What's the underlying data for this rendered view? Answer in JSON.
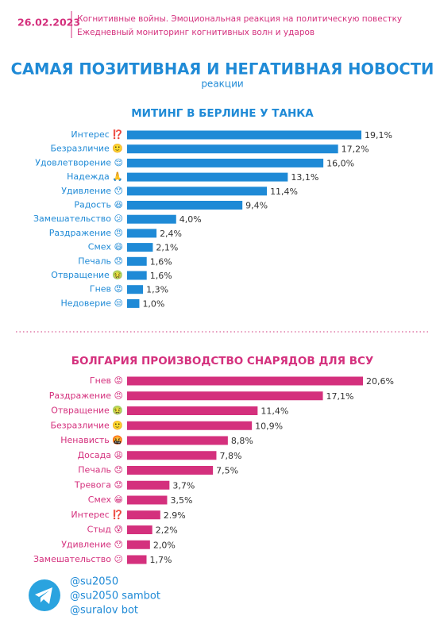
{
  "header": {
    "date": "26.02.2023",
    "lines": [
      "Когнитивные войны. Эмоциональная реакция на политическую повестку",
      "Ежедневный мониторинг когнитивных волн и ударов"
    ]
  },
  "title": "САМАЯ ПОЗИТИВНАЯ И НЕГАТИВНАЯ НОВОСТИ",
  "subtitle": "реакции",
  "chart_data": [
    {
      "type": "barh",
      "title": "МИТИНГ В БЕРЛИНЕ У  ТАНКА",
      "color": "#1f8ad6",
      "categories": [
        "Интерес ⁉️",
        "Безразличие 🙂",
        "Удовлетворение 😌",
        "Надежда 🙏",
        "Удивление 😯",
        "Радость 😆",
        "Замешательство 😕",
        "Раздражение 😠",
        "Смех 😄",
        "Печаль 😞",
        "Отвращение 🤢",
        "Гнев 😡",
        "Недоверие 😒"
      ],
      "values": [
        19.1,
        17.2,
        16.0,
        13.1,
        11.4,
        9.4,
        4.0,
        2.4,
        2.1,
        1.6,
        1.6,
        1.3,
        1.0
      ],
      "value_labels": [
        "19,1%",
        "17,2%",
        "16,0%",
        "13,1%",
        "11,4%",
        "9,4%",
        "4,0%",
        "2,4%",
        "2,1%",
        "1,6%",
        "1,6%",
        "1,3%",
        "1,0%"
      ]
    },
    {
      "type": "barh",
      "title": "БОЛГАРИЯ ПРОИЗВОДСТВО СНАРЯДОВ ДЛЯ ВСУ",
      "color": "#d4307d",
      "categories": [
        "Гнев 😡",
        "Раздражение 😠",
        "Отвращение 🤢",
        "Безразличие 🙂",
        "Ненависть 🤬",
        "Досада 😩",
        "Печаль 😞",
        "Тревога 😟",
        "Смех 😁",
        "Интерес ⁉️",
        "Стыд 😰",
        "Удивление 😯",
        "Замешательство 😕"
      ],
      "values": [
        20.6,
        17.1,
        11.4,
        10.9,
        8.8,
        7.8,
        7.5,
        3.7,
        3.5,
        2.9,
        2.2,
        2.0,
        1.7
      ],
      "value_labels": [
        "20,6%",
        "17,1%",
        "11,4%",
        "10,9%",
        "8,8%",
        "7,8%",
        "7,5%",
        "3,7%",
        "3,5%",
        "2.9%",
        "2,2%",
        "2,0%",
        "1,7%"
      ]
    }
  ],
  "footer": {
    "handles": [
      "@su2050",
      "@su2050 sambot",
      "@suralov bot"
    ]
  }
}
